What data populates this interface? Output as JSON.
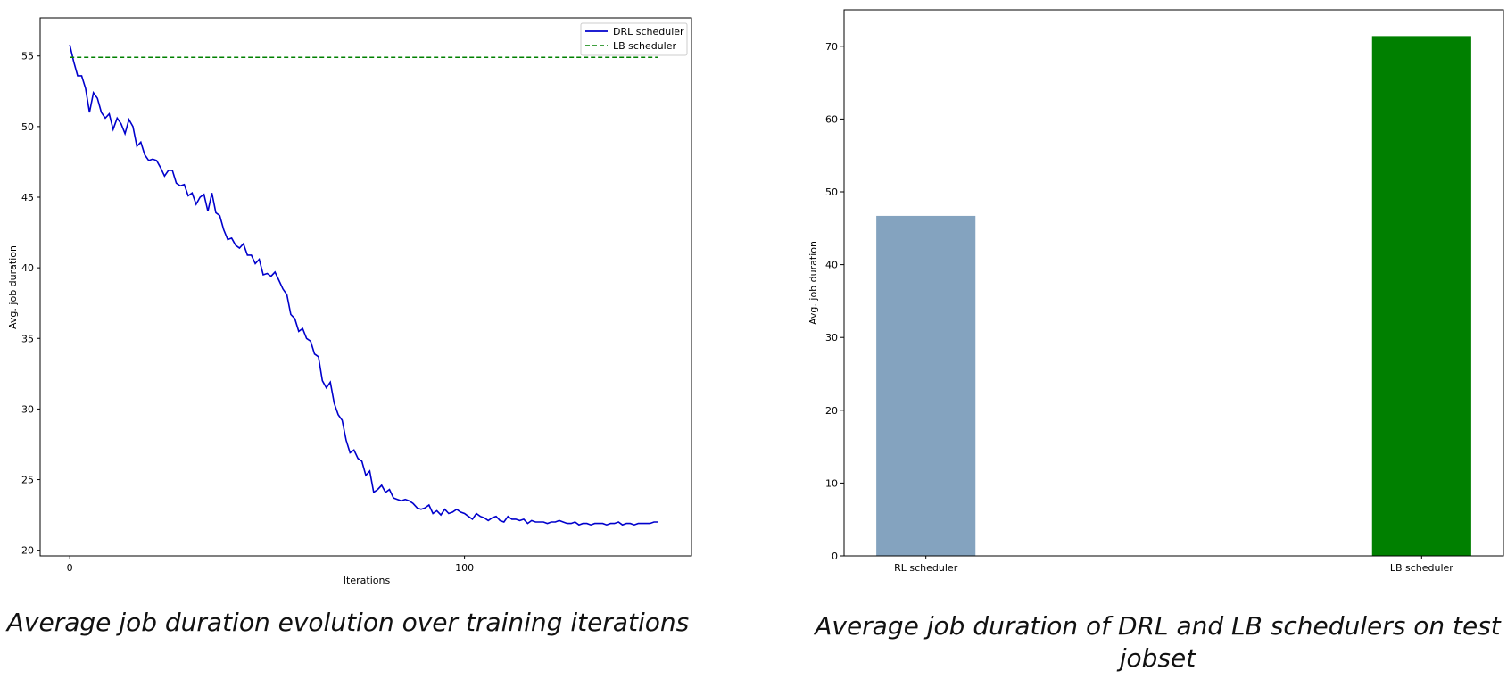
{
  "chart_data": [
    {
      "type": "line",
      "caption": "Average job duration evolution over training iterations",
      "xlabel": "Iterations",
      "ylabel": "Avg. job duration",
      "xlim": [
        -7.5,
        157.5
      ],
      "ylim": [
        19.6,
        57.7
      ],
      "xticks": [
        0,
        100
      ],
      "yticks": [
        20,
        25,
        30,
        35,
        40,
        45,
        50,
        55
      ],
      "legend_position": "top-right",
      "grid": false,
      "series": [
        {
          "name": "DRL scheduler",
          "color": "#0000cc",
          "style": "solid",
          "x": [
            0,
            1,
            2,
            3,
            4,
            5,
            6,
            7,
            8,
            9,
            10,
            11,
            12,
            13,
            14,
            15,
            16,
            17,
            18,
            19,
            20,
            21,
            22,
            23,
            24,
            25,
            26,
            27,
            28,
            29,
            30,
            31,
            32,
            33,
            34,
            35,
            36,
            37,
            38,
            39,
            40,
            41,
            42,
            43,
            44,
            45,
            46,
            47,
            48,
            49,
            50,
            51,
            52,
            53,
            54,
            55,
            56,
            57,
            58,
            59,
            60,
            61,
            62,
            63,
            64,
            65,
            66,
            67,
            68,
            69,
            70,
            71,
            72,
            73,
            74,
            75,
            76,
            77,
            78,
            79,
            80,
            81,
            82,
            83,
            84,
            85,
            86,
            87,
            88,
            89,
            90,
            91,
            92,
            93,
            94,
            95,
            96,
            97,
            98,
            99,
            100,
            101,
            102,
            103,
            104,
            105,
            106,
            107,
            108,
            109,
            110,
            111,
            112,
            113,
            114,
            115,
            116,
            117,
            118,
            119,
            120,
            121,
            122,
            123,
            124,
            125,
            126,
            127,
            128,
            129,
            130,
            131,
            132,
            133,
            134,
            135,
            136,
            137,
            138,
            139,
            140,
            141,
            142,
            143,
            144,
            145,
            146,
            147,
            148,
            149
          ],
          "y": [
            55.8,
            54.6,
            53.6,
            53.6,
            52.7,
            51.0,
            52.4,
            52.0,
            51.0,
            50.6,
            50.9,
            49.8,
            50.6,
            50.2,
            49.5,
            50.5,
            50.0,
            48.6,
            48.9,
            48.0,
            47.6,
            47.7,
            47.6,
            47.1,
            46.5,
            46.9,
            46.9,
            46.0,
            45.8,
            45.9,
            45.1,
            45.3,
            44.5,
            45.0,
            45.2,
            44.0,
            45.3,
            43.9,
            43.7,
            42.7,
            42.0,
            42.1,
            41.6,
            41.4,
            41.7,
            40.9,
            40.9,
            40.3,
            40.6,
            39.5,
            39.6,
            39.4,
            39.7,
            39.1,
            38.5,
            38.1,
            36.7,
            36.4,
            35.5,
            35.7,
            35.0,
            34.8,
            33.9,
            33.7,
            32.0,
            31.5,
            31.9,
            30.4,
            29.6,
            29.2,
            27.8,
            26.9,
            27.1,
            26.5,
            26.3,
            25.3,
            25.6,
            24.1,
            24.3,
            24.6,
            24.1,
            24.3,
            23.7,
            23.6,
            23.5,
            23.6,
            23.5,
            23.3,
            23.0,
            22.9,
            23.0,
            23.2,
            22.6,
            22.8,
            22.5,
            22.9,
            22.6,
            22.7,
            22.9,
            22.7,
            22.6,
            22.4,
            22.2,
            22.6,
            22.4,
            22.3,
            22.1,
            22.3,
            22.4,
            22.1,
            22.0,
            22.4,
            22.2,
            22.2,
            22.1,
            22.2,
            21.9,
            22.1,
            22.0,
            22.0,
            22.0,
            21.9,
            22.0,
            22.0,
            22.1,
            22.0,
            21.9,
            21.9,
            22.0,
            21.8,
            21.9,
            21.9,
            21.8,
            21.9,
            21.9,
            21.9,
            21.8,
            21.9,
            21.9,
            22.0,
            21.8,
            21.9,
            21.9,
            21.8,
            21.9,
            21.9,
            21.9,
            21.9,
            22.0,
            22.0
          ]
        },
        {
          "name": "LB scheduler",
          "color": "#008000",
          "style": "dashed",
          "x": [
            0,
            149
          ],
          "y": [
            54.9,
            54.9
          ]
        }
      ]
    },
    {
      "type": "bar",
      "caption": "Average job duration of DRL and LB schedulers on test jobset",
      "xlabel": "",
      "ylabel": "Avg. job duration",
      "ylim": [
        0,
        75
      ],
      "yticks": [
        0,
        10,
        20,
        30,
        40,
        50,
        60,
        70
      ],
      "grid": false,
      "categories": [
        "RL scheduler",
        "LB scheduler"
      ],
      "values": [
        46.7,
        71.4
      ],
      "colors": [
        "#84a3bf",
        "#008000"
      ]
    }
  ]
}
